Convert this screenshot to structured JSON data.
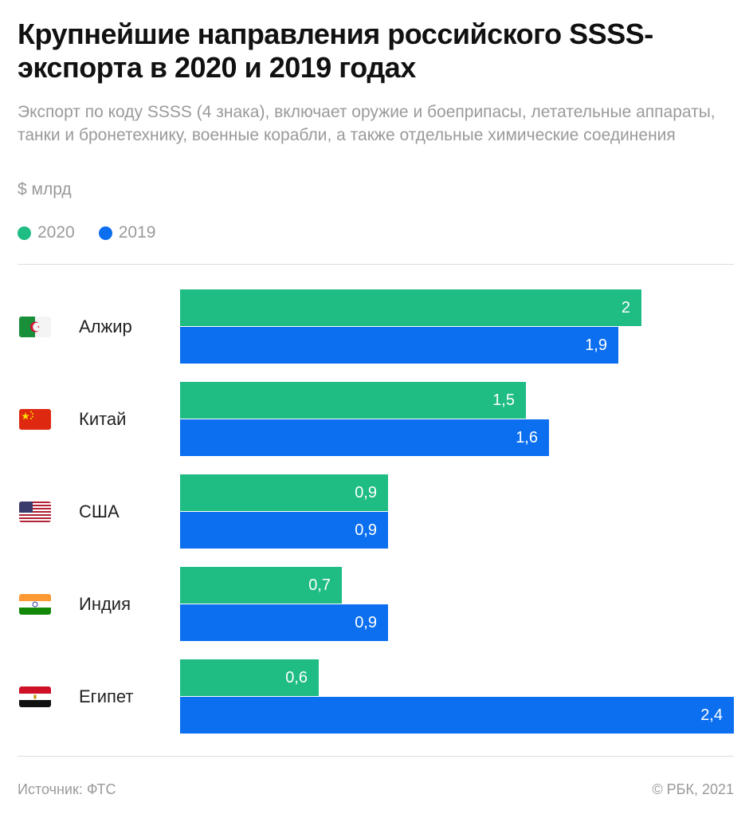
{
  "title": "Крупнейшие направления российского SSSS-экспорта в 2020 и 2019 годах",
  "subtitle": "Экспорт по коду SSSS (4 знака), включает оружие и боеприпасы, летательные аппараты, танки и бронетехнику, военные корабли, а также отдельные химические соединения",
  "unit": "$ млрд",
  "legend": [
    {
      "label": "2020",
      "color": "#1fbc83"
    },
    {
      "label": "2019",
      "color": "#0b6ff0"
    }
  ],
  "source": "Источник: ФТС",
  "copyright": "© РБК, 2021",
  "chart_data": {
    "type": "bar",
    "orientation": "horizontal",
    "title": "Крупнейшие направления российского SSSS-экспорта в 2020 и 2019 годах",
    "ylabel": "$ млрд",
    "categories": [
      "Алжир",
      "Китай",
      "США",
      "Индия",
      "Египет"
    ],
    "flags": [
      "algeria-flag-icon",
      "china-flag-icon",
      "usa-flag-icon",
      "india-flag-icon",
      "egypt-flag-icon"
    ],
    "series": [
      {
        "name": "2020",
        "color": "#1fbc83",
        "values": [
          2,
          1.5,
          0.9,
          0.7,
          0.6
        ],
        "labels": [
          "2",
          "1,5",
          "0,9",
          "0,7",
          "0,6"
        ]
      },
      {
        "name": "2019",
        "color": "#0b6ff0",
        "values": [
          1.9,
          1.6,
          0.9,
          0.9,
          2.4
        ],
        "labels": [
          "1,9",
          "1,6",
          "0,9",
          "0,9",
          "2,4"
        ]
      }
    ],
    "xlim": [
      0,
      2.4
    ]
  }
}
